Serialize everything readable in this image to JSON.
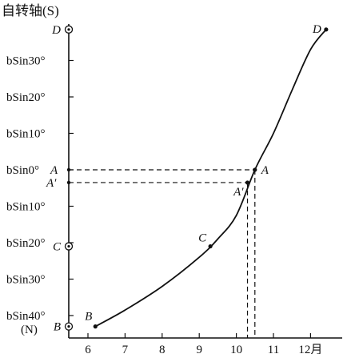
{
  "chart_data": {
    "type": "line",
    "title": "自转轴(S)",
    "south_label": "(N)",
    "x_ticks": [
      {
        "v": 6,
        "label": "6"
      },
      {
        "v": 7,
        "label": "7"
      },
      {
        "v": 8,
        "label": "8"
      },
      {
        "v": 9,
        "label": "9"
      },
      {
        "v": 10,
        "label": "10"
      },
      {
        "v": 11,
        "label": "11"
      },
      {
        "v": 12,
        "label": "12月"
      }
    ],
    "y_ticks": [
      {
        "v": 30,
        "label": "bSin30°"
      },
      {
        "v": 20,
        "label": "bSin20°"
      },
      {
        "v": 10,
        "label": "bSin10°"
      },
      {
        "v": 0,
        "label": "bSin0°"
      },
      {
        "v": -10,
        "label": "bSin10°"
      },
      {
        "v": -20,
        "label": "bSin20°"
      },
      {
        "v": -30,
        "label": "bSin30°"
      },
      {
        "v": -40,
        "label": "bSin40°"
      }
    ],
    "xlim": [
      5.4,
      12.9
    ],
    "ylim": [
      -49,
      43
    ],
    "curve": [
      [
        6.2,
        -43
      ],
      [
        7.0,
        -38.5
      ],
      [
        8.0,
        -32
      ],
      [
        9.0,
        -24
      ],
      [
        9.5,
        -19
      ],
      [
        10.0,
        -12.5
      ],
      [
        10.5,
        0
      ],
      [
        11.0,
        10
      ],
      [
        11.5,
        21.8
      ],
      [
        12.0,
        33
      ],
      [
        12.42,
        38.5
      ]
    ],
    "points": [
      {
        "name": "B",
        "x": 6.2,
        "y": -43,
        "label": "B"
      },
      {
        "name": "C",
        "x": 9.3,
        "y": -21,
        "label": "C"
      },
      {
        "name": "A'",
        "x": 10.3,
        "y": -3.5,
        "label": "A′"
      },
      {
        "name": "A",
        "x": 10.5,
        "y": 0,
        "label": "A"
      },
      {
        "name": "D",
        "x": 12.42,
        "y": 38.5,
        "label": "D"
      }
    ],
    "axis_markers": [
      {
        "y": 38.5,
        "label": "D"
      },
      {
        "y": 0,
        "label": "A"
      },
      {
        "y": -3.5,
        "label": "A′"
      },
      {
        "y": -21,
        "label": "C"
      },
      {
        "y": -43,
        "label": "B"
      }
    ],
    "dashed_refs": [
      {
        "x": 10.5,
        "y": 0
      },
      {
        "x": 10.3,
        "y": -3.5
      }
    ]
  }
}
